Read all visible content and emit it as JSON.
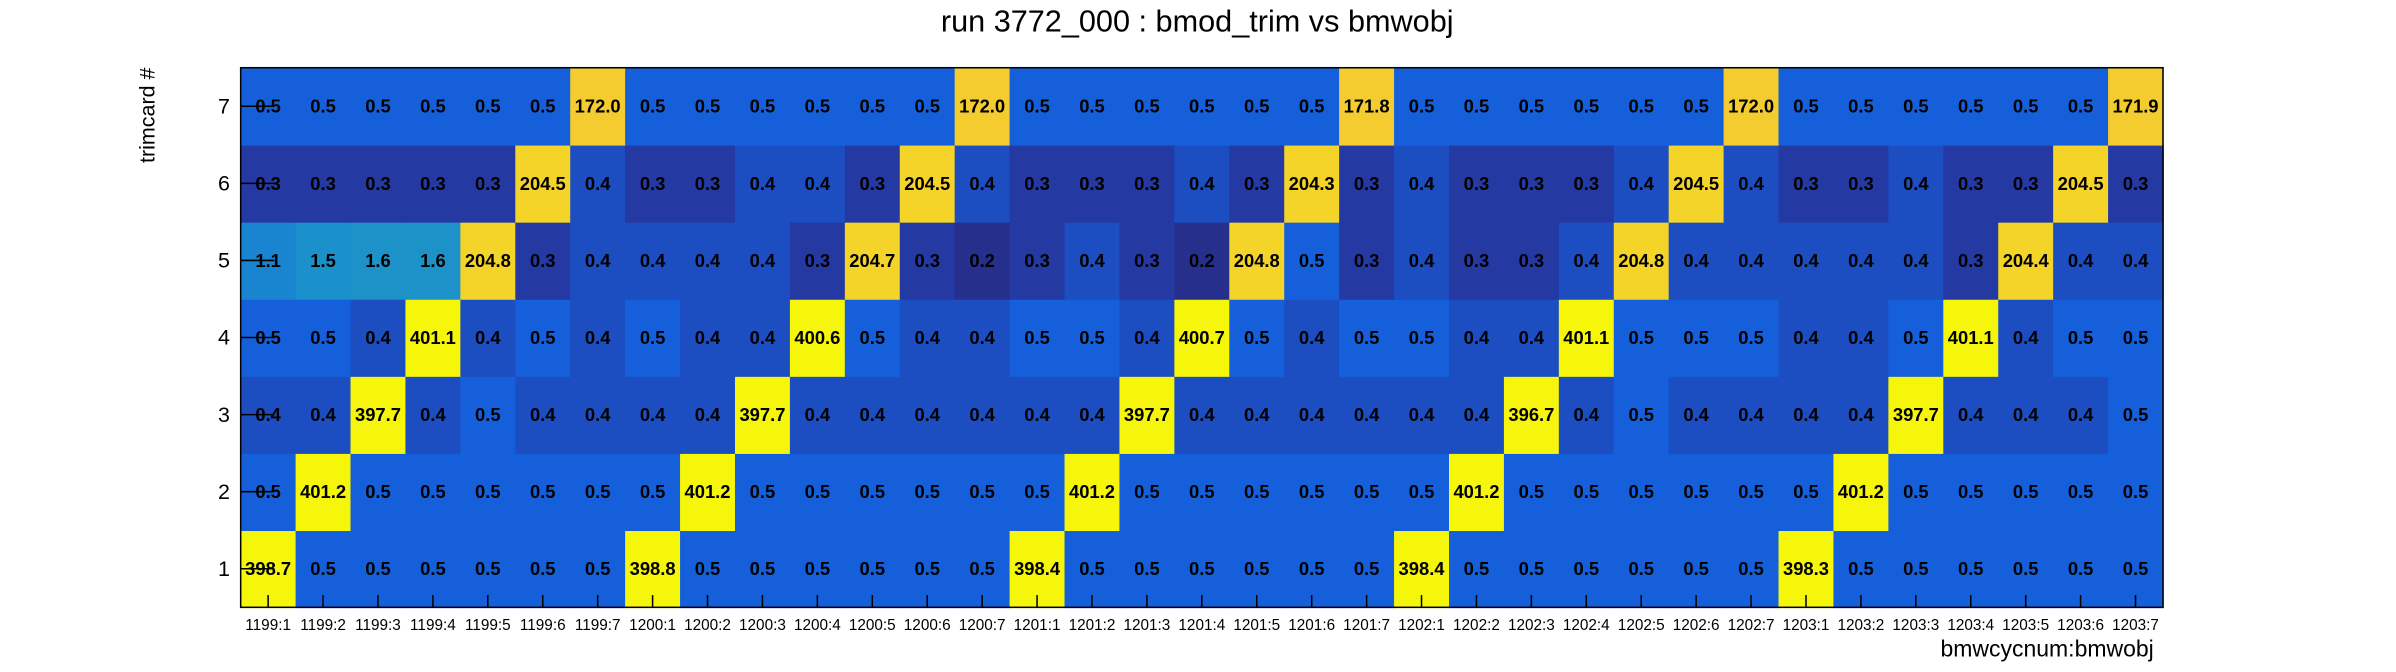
{
  "chart_data": {
    "type": "heatmap",
    "title": "run 3772_000 : bmod_trim vs bmwobj",
    "x_label": "bmwcycnum:bmwobj",
    "y_label": "trimcard #",
    "categories": [
      "1199:1",
      "1199:2",
      "1199:3",
      "1199:4",
      "1199:5",
      "1199:6",
      "1199:7",
      "1200:1",
      "1200:2",
      "1200:3",
      "1200:4",
      "1200:5",
      "1200:6",
      "1200:7",
      "1201:1",
      "1201:2",
      "1201:3",
      "1201:4",
      "1201:5",
      "1201:6",
      "1201:7",
      "1202:1",
      "1202:2",
      "1202:3",
      "1202:4",
      "1202:5",
      "1202:6",
      "1202:7",
      "1203:1",
      "1203:2",
      "1203:3",
      "1203:4",
      "1203:5",
      "1203:6",
      "1203:7"
    ],
    "ylim": [
      0.5,
      7.5
    ],
    "yticks": [
      1,
      2,
      3,
      4,
      5,
      6,
      7
    ],
    "values": [
      [
        398.7,
        0.5,
        0.5,
        0.5,
        0.5,
        0.5,
        0.5,
        398.8,
        0.5,
        0.5,
        0.5,
        0.5,
        0.5,
        0.5,
        398.4,
        0.5,
        0.5,
        0.5,
        0.5,
        0.5,
        0.5,
        398.4,
        0.5,
        0.5,
        0.5,
        0.5,
        0.5,
        0.5,
        398.3,
        0.5,
        0.5,
        0.5,
        0.5,
        0.5,
        0.5
      ],
      [
        0.5,
        401.2,
        0.5,
        0.5,
        0.5,
        0.5,
        0.5,
        0.5,
        401.2,
        0.5,
        0.5,
        0.5,
        0.5,
        0.5,
        0.5,
        401.2,
        0.5,
        0.5,
        0.5,
        0.5,
        0.5,
        0.5,
        401.2,
        0.5,
        0.5,
        0.5,
        0.5,
        0.5,
        0.5,
        401.2,
        0.5,
        0.5,
        0.5,
        0.5,
        0.5
      ],
      [
        0.4,
        0.4,
        397.7,
        0.4,
        0.5,
        0.4,
        0.4,
        0.4,
        0.4,
        397.7,
        0.4,
        0.4,
        0.4,
        0.4,
        0.4,
        0.4,
        397.7,
        0.4,
        0.4,
        0.4,
        0.4,
        0.4,
        0.4,
        396.7,
        0.4,
        0.5,
        0.4,
        0.4,
        0.4,
        0.4,
        397.7,
        0.4,
        0.4,
        0.4,
        0.5
      ],
      [
        0.5,
        0.5,
        0.4,
        401.1,
        0.4,
        0.5,
        0.4,
        0.5,
        0.4,
        0.4,
        400.6,
        0.5,
        0.4,
        0.4,
        0.5,
        0.5,
        0.4,
        400.7,
        0.5,
        0.4,
        0.5,
        0.5,
        0.4,
        0.4,
        401.1,
        0.5,
        0.5,
        0.5,
        0.4,
        0.4,
        0.5,
        401.1,
        0.4,
        0.5,
        0.5
      ],
      [
        1.1,
        1.5,
        1.6,
        1.6,
        204.8,
        0.3,
        0.4,
        0.4,
        0.4,
        0.4,
        0.3,
        204.7,
        0.3,
        0.2,
        0.3,
        0.4,
        0.3,
        0.2,
        204.8,
        0.5,
        0.3,
        0.4,
        0.3,
        0.3,
        0.4,
        204.8,
        0.4,
        0.4,
        0.4,
        0.4,
        0.4,
        0.3,
        204.4,
        0.4,
        0.4
      ],
      [
        0.3,
        0.3,
        0.3,
        0.3,
        0.3,
        204.5,
        0.4,
        0.3,
        0.3,
        0.4,
        0.4,
        0.3,
        204.5,
        0.4,
        0.3,
        0.3,
        0.3,
        0.4,
        0.3,
        204.3,
        0.3,
        0.4,
        0.3,
        0.3,
        0.3,
        0.4,
        204.5,
        0.4,
        0.3,
        0.3,
        0.4,
        0.3,
        0.3,
        204.5,
        0.3
      ],
      [
        0.5,
        0.5,
        0.5,
        0.5,
        0.5,
        0.5,
        172.0,
        0.5,
        0.5,
        0.5,
        0.5,
        0.5,
        0.5,
        172.0,
        0.5,
        0.5,
        0.5,
        0.5,
        0.5,
        0.5,
        171.8,
        0.5,
        0.5,
        0.5,
        0.5,
        0.5,
        0.5,
        172.0,
        0.5,
        0.5,
        0.5,
        0.5,
        0.5,
        0.5,
        171.9
      ]
    ],
    "value_labels": [
      [
        "398.7",
        "0.5",
        "0.5",
        "0.5",
        "0.5",
        "0.5",
        "0.5",
        "398.8",
        "0.5",
        "0.5",
        "0.5",
        "0.5",
        "0.5",
        "0.5",
        "398.4",
        "0.5",
        "0.5",
        "0.5",
        "0.5",
        "0.5",
        "0.5",
        "398.4",
        "0.5",
        "0.5",
        "0.5",
        "0.5",
        "0.5",
        "0.5",
        "398.3",
        "0.5",
        "0.5",
        "0.5",
        "0.5",
        "0.5",
        "0.5"
      ],
      [
        "0.5",
        "401.2",
        "0.5",
        "0.5",
        "0.5",
        "0.5",
        "0.5",
        "0.5",
        "401.2",
        "0.5",
        "0.5",
        "0.5",
        "0.5",
        "0.5",
        "0.5",
        "401.2",
        "0.5",
        "0.5",
        "0.5",
        "0.5",
        "0.5",
        "0.5",
        "401.2",
        "0.5",
        "0.5",
        "0.5",
        "0.5",
        "0.5",
        "0.5",
        "401.2",
        "0.5",
        "0.5",
        "0.5",
        "0.5",
        "0.5"
      ],
      [
        "0.4",
        "0.4",
        "397.7",
        "0.4",
        "0.5",
        "0.4",
        "0.4",
        "0.4",
        "0.4",
        "397.7",
        "0.4",
        "0.4",
        "0.4",
        "0.4",
        "0.4",
        "0.4",
        "397.7",
        "0.4",
        "0.4",
        "0.4",
        "0.4",
        "0.4",
        "0.4",
        "396.7",
        "0.4",
        "0.5",
        "0.4",
        "0.4",
        "0.4",
        "0.4",
        "397.7",
        "0.4",
        "0.4",
        "0.4",
        "0.5"
      ],
      [
        "0.5",
        "0.5",
        "0.4",
        "401.1",
        "0.4",
        "0.5",
        "0.4",
        "0.5",
        "0.4",
        "0.4",
        "400.6",
        "0.5",
        "0.4",
        "0.4",
        "0.5",
        "0.5",
        "0.4",
        "400.7",
        "0.5",
        "0.4",
        "0.5",
        "0.5",
        "0.4",
        "0.4",
        "401.1",
        "0.5",
        "0.5",
        "0.5",
        "0.4",
        "0.4",
        "0.5",
        "401.1",
        "0.4",
        "0.5",
        "0.5"
      ],
      [
        "1.1",
        "1.5",
        "1.6",
        "1.6",
        "204.8",
        "0.3",
        "0.4",
        "0.4",
        "0.4",
        "0.4",
        "0.3",
        "204.7",
        "0.3",
        "0.2",
        "0.3",
        "0.4",
        "0.3",
        "0.2",
        "204.8",
        "0.5",
        "0.3",
        "0.4",
        "0.3",
        "0.3",
        "0.4",
        "204.8",
        "0.4",
        "0.4",
        "0.4",
        "0.4",
        "0.4",
        "0.3",
        "204.4",
        "0.4",
        "0.4"
      ],
      [
        "0.3",
        "0.3",
        "0.3",
        "0.3",
        "0.3",
        "204.5",
        "0.4",
        "0.3",
        "0.3",
        "0.4",
        "0.4",
        "0.3",
        "204.5",
        "0.4",
        "0.3",
        "0.3",
        "0.3",
        "0.4",
        "0.3",
        "204.3",
        "0.3",
        "0.4",
        "0.3",
        "0.3",
        "0.3",
        "0.4",
        "204.5",
        "0.4",
        "0.3",
        "0.3",
        "0.4",
        "0.3",
        "0.3",
        "204.5",
        "0.3"
      ],
      [
        "0.5",
        "0.5",
        "0.5",
        "0.5",
        "0.5",
        "0.5",
        "172.0",
        "0.5",
        "0.5",
        "0.5",
        "0.5",
        "0.5",
        "0.5",
        "172.0",
        "0.5",
        "0.5",
        "0.5",
        "0.5",
        "0.5",
        "0.5",
        "171.8",
        "0.5",
        "0.5",
        "0.5",
        "0.5",
        "0.5",
        "0.5",
        "172.0",
        "0.5",
        "0.5",
        "0.5",
        "0.5",
        "0.5",
        "0.5",
        "171.9"
      ]
    ]
  }
}
